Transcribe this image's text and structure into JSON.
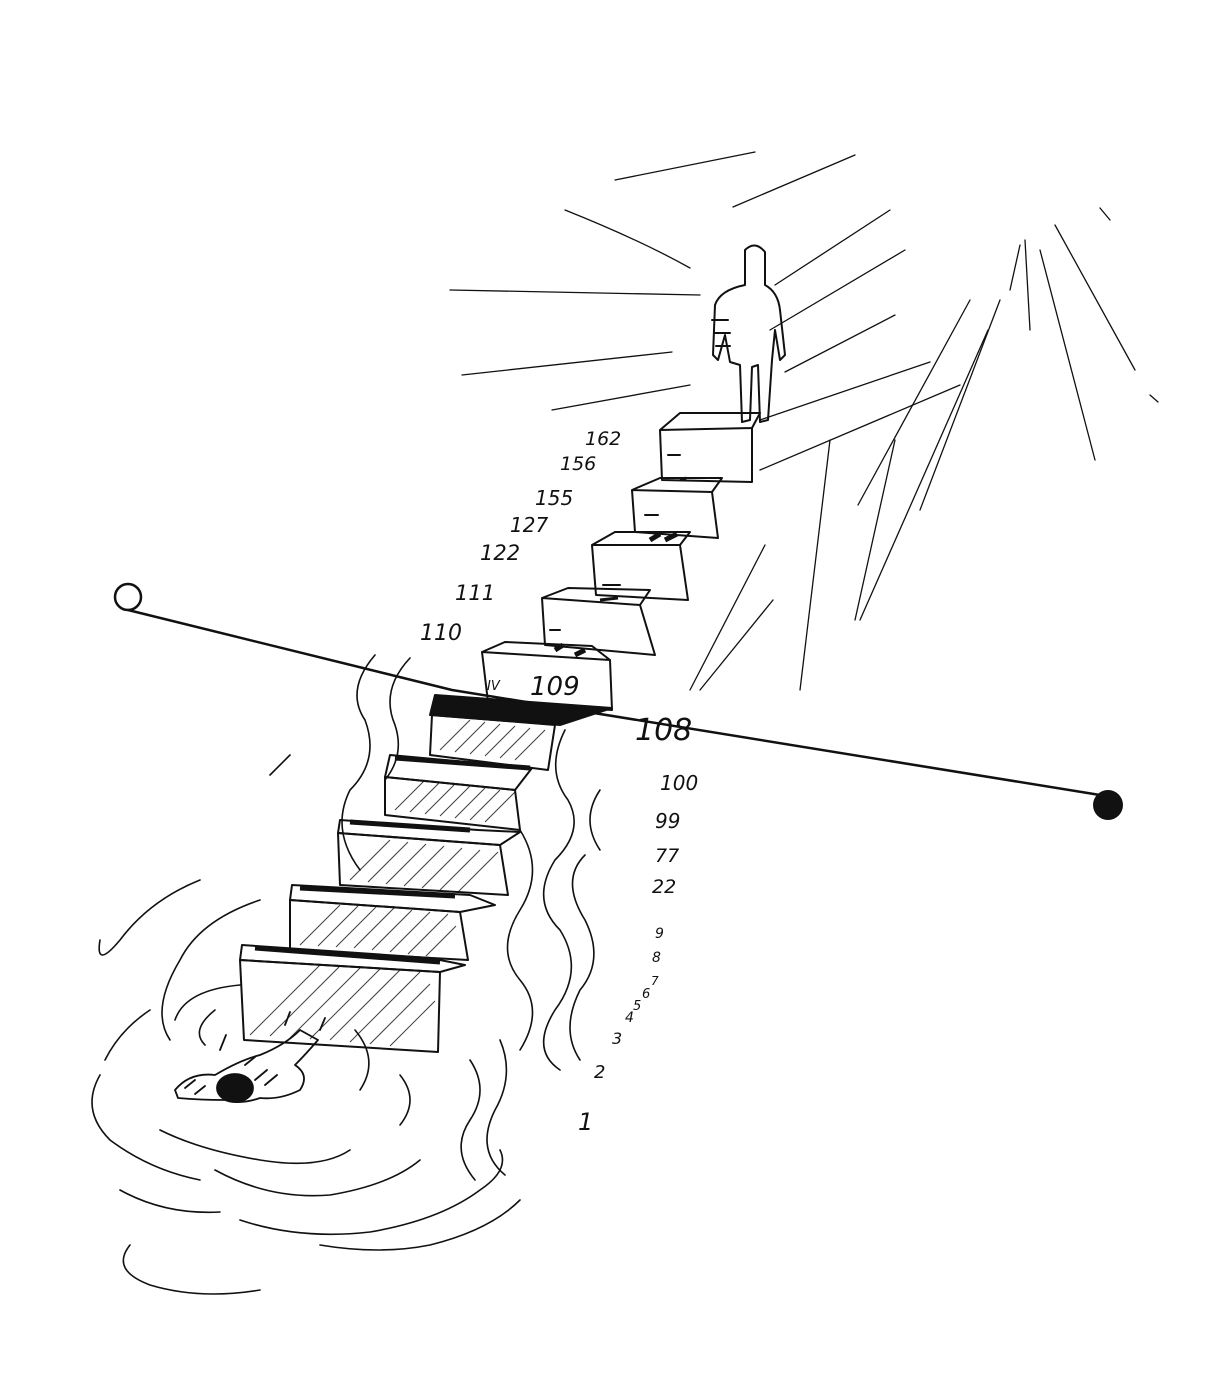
{
  "upper_numbers": [
    "162",
    "156",
    "155",
    "127",
    "122",
    "111",
    "110"
  ],
  "step_number": "109",
  "step_roman": "IV",
  "crossing_number": "108",
  "lower_numbers": [
    "100",
    "99",
    "77",
    "22",
    "9",
    "8",
    "7",
    "6",
    "5",
    "4",
    "3",
    "2",
    "1"
  ],
  "colors": {
    "ink": "#111111",
    "paper": "#ffffff"
  },
  "icons": [
    "open-circle-icon",
    "filled-circle-icon",
    "sun-icon",
    "standing-figure-icon",
    "floating-figure-icon"
  ]
}
